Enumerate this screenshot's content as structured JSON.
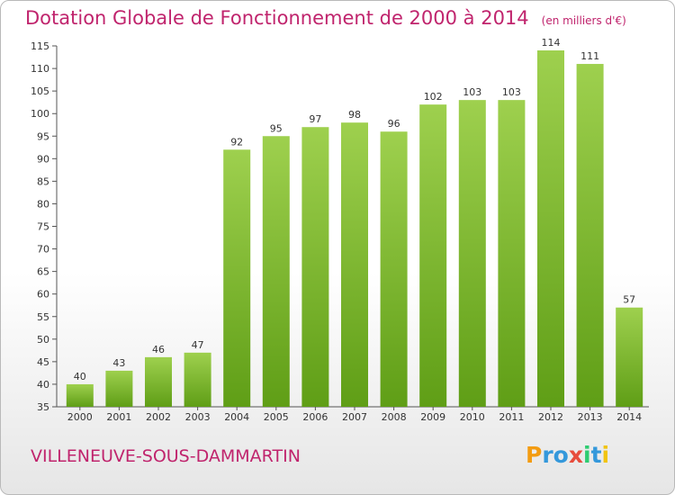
{
  "chart_data": {
    "type": "bar",
    "title": "Dotation Globale de Fonctionnement de 2000 à 2014",
    "subtitle": "(en milliers d'€)",
    "categories": [
      "2000",
      "2001",
      "2002",
      "2003",
      "2004",
      "2005",
      "2006",
      "2007",
      "2008",
      "2009",
      "2010",
      "2011",
      "2012",
      "2013",
      "2014"
    ],
    "values": [
      40,
      43,
      46,
      47,
      92,
      95,
      97,
      98,
      96,
      102,
      103,
      103,
      114,
      111,
      57
    ],
    "ylim": [
      35,
      115
    ],
    "yticks": [
      35,
      40,
      45,
      50,
      55,
      60,
      65,
      70,
      75,
      80,
      85,
      90,
      95,
      100,
      105,
      110,
      115
    ],
    "xlabel": "",
    "ylabel": "",
    "grid": false,
    "bar_color": "#8cc43a",
    "bar_color_dark": "#5a9a14"
  },
  "footer": {
    "town": "VILLENEUVE-SOUS-DAMMARTIN",
    "logo": {
      "letters": [
        "P",
        "r",
        "o",
        "x",
        "i",
        "t",
        "i"
      ],
      "colors": [
        "#f39c12",
        "#3498db",
        "#3498db",
        "#e74c3c",
        "#2ecc71",
        "#3498db",
        "#f1c40f"
      ]
    }
  },
  "colors": {
    "title": "#c0246d",
    "axis": "#555555"
  }
}
